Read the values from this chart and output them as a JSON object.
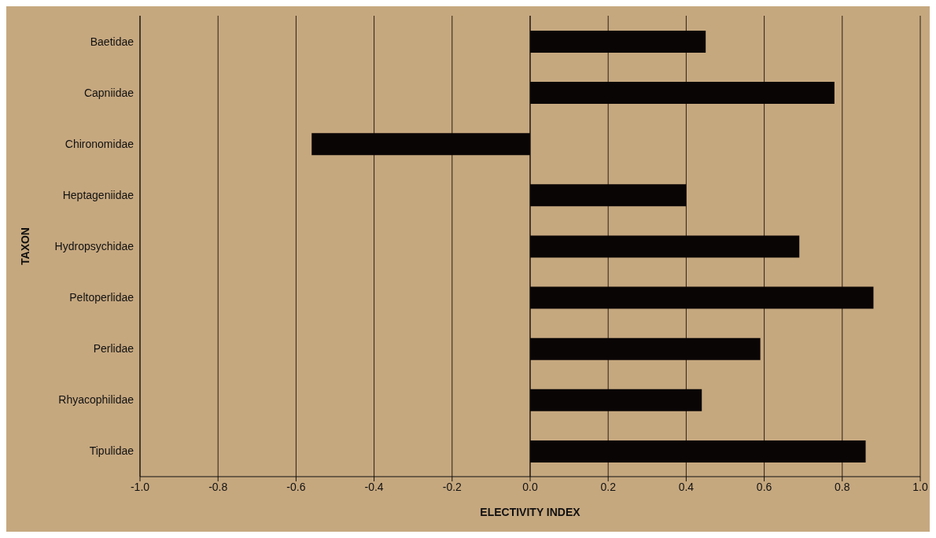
{
  "chart_data": {
    "type": "bar",
    "orientation": "horizontal",
    "xlabel": "ELECTIVITY INDEX",
    "ylabel": "TAXON",
    "categories": [
      "Baetidae",
      "Capniidae",
      "Chironomidae",
      "Heptageniidae",
      "Hydropsychidae",
      "Peltoperlidae",
      "Perlidae",
      "Rhyacophilidae",
      "Tipulidae"
    ],
    "values": [
      0.45,
      0.78,
      -0.56,
      0.4,
      0.69,
      0.88,
      0.59,
      0.44,
      0.86
    ],
    "color": "#0a0505",
    "xlim": [
      -1,
      1
    ],
    "xticks": [
      {
        "value": -1,
        "label": "-1.0"
      },
      {
        "value": -0.8,
        "label": "-0.8"
      },
      {
        "value": -0.6,
        "label": "-0.6"
      },
      {
        "value": -0.4,
        "label": "-0.4"
      },
      {
        "value": -0.2,
        "label": "-0.2"
      },
      {
        "value": 0,
        "label": "0.0"
      },
      {
        "value": 0.2,
        "label": "0.2"
      },
      {
        "value": 0.4,
        "label": "0.4"
      },
      {
        "value": 0.6,
        "label": "0.6"
      },
      {
        "value": 0.8,
        "label": "0.8"
      },
      {
        "value": 1,
        "label": "1.0"
      }
    ],
    "grid": "x"
  }
}
